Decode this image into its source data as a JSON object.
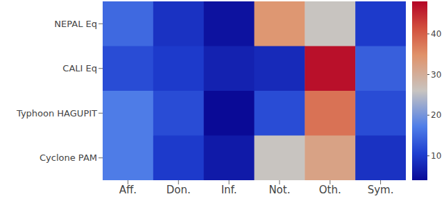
{
  "chart_data": {
    "type": "heatmap",
    "x_categories": [
      "Aff.",
      "Don.",
      "Inf.",
      "Not.",
      "Oth.",
      "Sym."
    ],
    "y_categories": [
      "NEPAL Eq",
      "CALI Eq",
      "Typhoon HAGUPIT",
      "Cyclone PAM"
    ],
    "values": [
      [
        15,
        9,
        5,
        34,
        26,
        10
      ],
      [
        12,
        10,
        7,
        8,
        47,
        14
      ],
      [
        17,
        12,
        4,
        12,
        38,
        12
      ],
      [
        17,
        10,
        6,
        26,
        32,
        9
      ]
    ],
    "colorbar": {
      "range": [
        4,
        48
      ],
      "ticks": [
        10,
        20,
        30,
        40
      ]
    }
  }
}
